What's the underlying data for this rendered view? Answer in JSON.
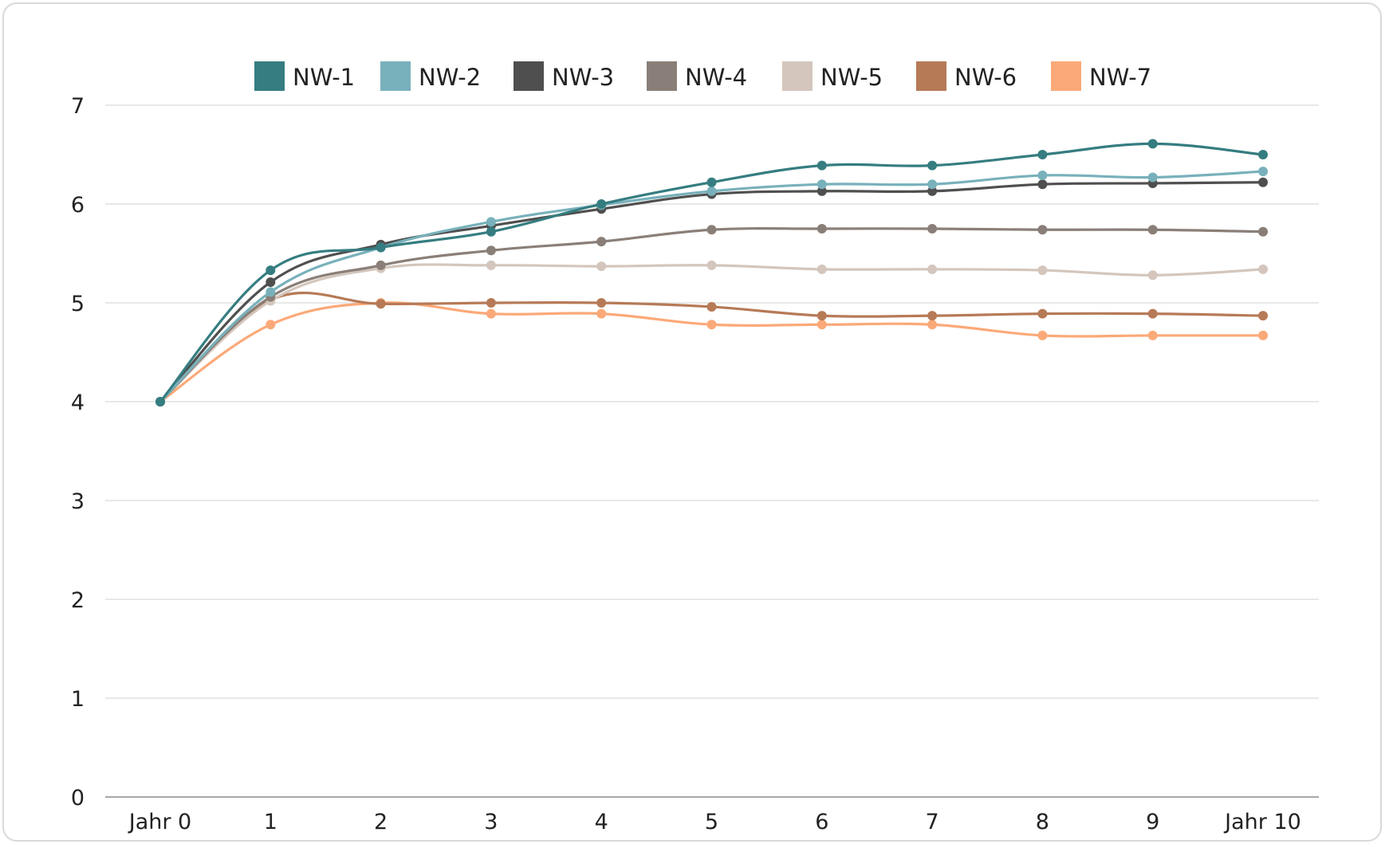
{
  "chart_data": {
    "type": "line",
    "title": "",
    "xlabel": "",
    "ylabel": "",
    "categories": [
      "Jahr 0",
      "1",
      "2",
      "3",
      "4",
      "5",
      "6",
      "7",
      "8",
      "9",
      "Jahr 10"
    ],
    "ylim": [
      0,
      7
    ],
    "yticks": [
      "0",
      "1",
      "2",
      "3",
      "4",
      "5",
      "6",
      "7"
    ],
    "grid": true,
    "legend_position": "top",
    "series": [
      {
        "name": "NW-1",
        "color": "#357d80",
        "values": [
          4.0,
          5.33,
          5.56,
          5.72,
          6.0,
          6.22,
          6.39,
          6.39,
          6.5,
          6.61,
          6.5
        ]
      },
      {
        "name": "NW-2",
        "color": "#78b1bb",
        "values": [
          4.0,
          5.11,
          5.56,
          5.82,
          5.99,
          6.13,
          6.2,
          6.2,
          6.29,
          6.27,
          6.33
        ]
      },
      {
        "name": "NW-3",
        "color": "#4f4f4f",
        "values": [
          4.0,
          5.21,
          5.59,
          5.78,
          5.95,
          6.1,
          6.13,
          6.13,
          6.2,
          6.21,
          6.22
        ]
      },
      {
        "name": "NW-4",
        "color": "#8a7f78",
        "values": [
          4.0,
          5.06,
          5.38,
          5.53,
          5.62,
          5.74,
          5.75,
          5.75,
          5.74,
          5.74,
          5.72
        ]
      },
      {
        "name": "NW-5",
        "color": "#d4c6bc",
        "values": [
          4.0,
          5.02,
          5.35,
          5.38,
          5.37,
          5.38,
          5.34,
          5.34,
          5.33,
          5.28,
          5.34
        ]
      },
      {
        "name": "NW-6",
        "color": "#b67a56",
        "values": [
          4.0,
          5.03,
          4.99,
          5.0,
          5.0,
          4.96,
          4.87,
          4.87,
          4.89,
          4.89,
          4.87
        ]
      },
      {
        "name": "NW-7",
        "color": "#fba978",
        "values": [
          4.0,
          4.78,
          5.0,
          4.89,
          4.89,
          4.78,
          4.78,
          4.78,
          4.67,
          4.67,
          4.67
        ]
      }
    ]
  }
}
